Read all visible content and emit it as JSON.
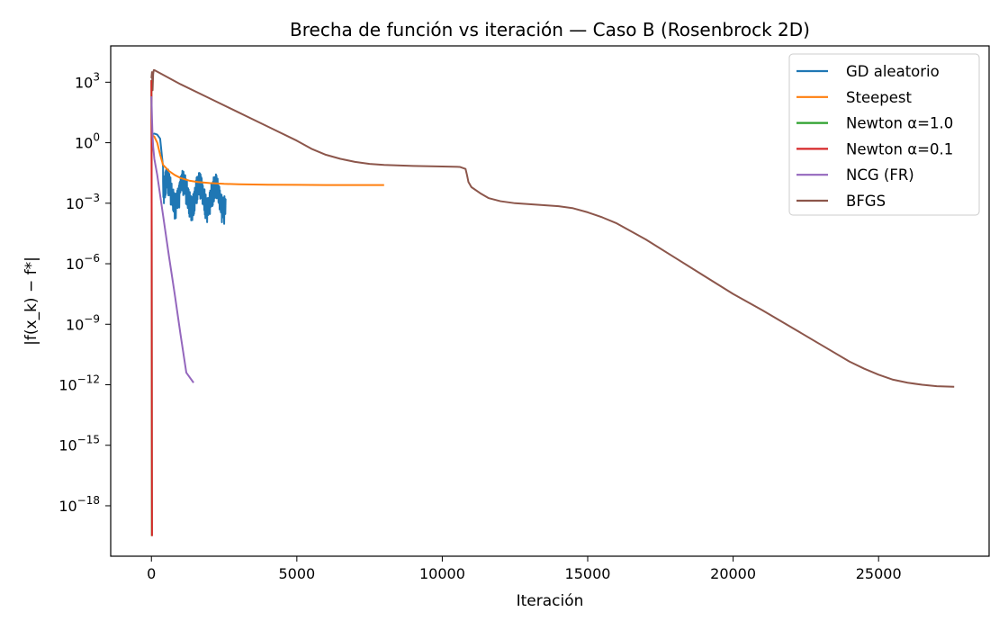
{
  "chart_data": {
    "type": "line",
    "title": "Brecha de función vs iteración — Caso B (Rosenbrock 2D)",
    "xlabel": "Iteración",
    "ylabel": "|f(x_k) − f*|",
    "xscale": "linear",
    "yscale": "log",
    "xlim": [
      -1400,
      28800
    ],
    "ylim_exp": [
      -20.5,
      4.8
    ],
    "xticks": [
      0,
      5000,
      10000,
      15000,
      20000,
      25000
    ],
    "xtick_labels": [
      "0",
      "5000",
      "10000",
      "15000",
      "20000",
      "25000"
    ],
    "yticks_exp": [
      3,
      0,
      -3,
      -6,
      -9,
      -12,
      -15,
      -18
    ],
    "ytick_base": "10",
    "ytick_exponents": [
      "3",
      "0",
      "−3",
      "−6",
      "−9",
      "−12",
      "−15",
      "−18"
    ],
    "grid": false,
    "legend_position": "top-right",
    "series": [
      {
        "name": "GD aleatorio",
        "color": "#1f77b4",
        "noisy_segment": {
          "x_start": 400,
          "x_end": 2550,
          "log10_center": -2.3,
          "noise_log10": 0.9
        },
        "x": [
          0,
          100,
          200,
          300,
          400
        ],
        "log10_y": [
          0.4,
          0.45,
          0.4,
          0.2,
          -1.2
        ]
      },
      {
        "name": "Steepest",
        "color": "#ff7f0e",
        "x": [
          0,
          100,
          200,
          300,
          400,
          600,
          800,
          1000,
          1300,
          1600,
          2000,
          2500,
          3000,
          4000,
          5000,
          6000,
          7000,
          8000
        ],
        "log10_y": [
          0.4,
          0.3,
          0,
          -0.6,
          -1.1,
          -1.4,
          -1.6,
          -1.75,
          -1.88,
          -1.95,
          -2.0,
          -2.04,
          -2.06,
          -2.08,
          -2.09,
          -2.1,
          -2.1,
          -2.1
        ]
      },
      {
        "name": "Newton α=1.0",
        "color": "#2ca02c",
        "x": [
          0,
          5,
          10,
          15
        ],
        "log10_y": [
          3.1,
          0.5,
          -5,
          -19.5
        ]
      },
      {
        "name": "Newton α=0.1",
        "color": "#d62728",
        "x": [
          0,
          2,
          4,
          6,
          8,
          10,
          12,
          14,
          16,
          18,
          20
        ],
        "log10_y": [
          3.1,
          2.0,
          0.8,
          -0.8,
          -3,
          -6,
          -9,
          -12,
          -15,
          -17.5,
          -19.5
        ]
      },
      {
        "name": "NCG (FR)",
        "color": "#9467bd",
        "x": [
          0,
          20,
          40,
          60,
          100,
          200,
          400,
          600,
          800,
          1000,
          1200,
          1450
        ],
        "log10_y": [
          2.3,
          1.2,
          0.3,
          -0.2,
          -0.8,
          -1.6,
          -3.6,
          -5.6,
          -7.5,
          -9.5,
          -11.4,
          -11.9
        ]
      },
      {
        "name": "BFGS",
        "color": "#8c564b",
        "x": [
          0,
          20,
          40,
          60,
          80,
          100,
          1000,
          2000,
          3000,
          4000,
          5000,
          5500,
          6000,
          6500,
          7000,
          7500,
          8000,
          9000,
          10000,
          10600,
          10800,
          10850,
          10900,
          11000,
          11300,
          11600,
          12000,
          12500,
          13000,
          13500,
          14000,
          14500,
          15000,
          15500,
          16000,
          17000,
          18000,
          19000,
          20000,
          21000,
          22000,
          23000,
          24000,
          24500,
          25000,
          25500,
          26000,
          26500,
          27000,
          27600
        ],
        "log10_y": [
          3.2,
          3.5,
          2.6,
          3.4,
          3.6,
          3.6,
          2.9,
          2.2,
          1.5,
          0.8,
          0.1,
          -0.3,
          -0.6,
          -0.8,
          -0.95,
          -1.05,
          -1.1,
          -1.15,
          -1.18,
          -1.2,
          -1.3,
          -1.6,
          -1.95,
          -2.2,
          -2.5,
          -2.75,
          -2.9,
          -3.0,
          -3.05,
          -3.1,
          -3.15,
          -3.25,
          -3.45,
          -3.7,
          -4.0,
          -4.8,
          -5.7,
          -6.6,
          -7.5,
          -8.3,
          -9.15,
          -10.0,
          -10.85,
          -11.2,
          -11.5,
          -11.75,
          -11.9,
          -12.0,
          -12.07,
          -12.1
        ]
      }
    ]
  }
}
